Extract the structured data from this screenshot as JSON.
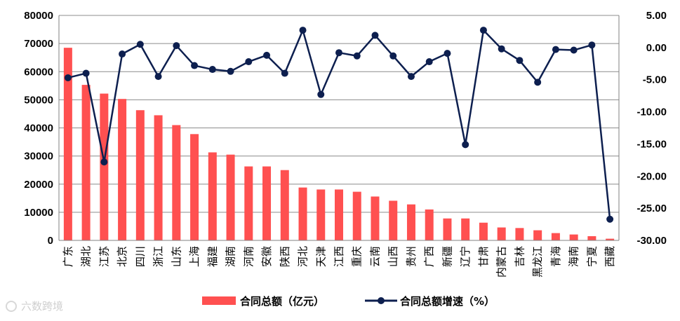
{
  "chart_data": {
    "type": "bar+line",
    "categories": [
      "广东",
      "湖北",
      "江苏",
      "北京",
      "四川",
      "浙江",
      "山东",
      "上海",
      "福建",
      "湖南",
      "河南",
      "安徽",
      "陕西",
      "河北",
      "天津",
      "江西",
      "重庆",
      "云南",
      "山西",
      "贵州",
      "广西",
      "新疆",
      "辽宁",
      "甘肃",
      "内蒙古",
      "吉林",
      "黑龙江",
      "青海",
      "海南",
      "宁夏",
      "西藏"
    ],
    "series": [
      {
        "name": "合同总额（亿元）",
        "type": "bar",
        "axis": "left",
        "color": "#ff5050",
        "values": [
          68500,
          55300,
          52200,
          50300,
          46300,
          44500,
          41000,
          37800,
          31300,
          30500,
          26300,
          26300,
          25000,
          18800,
          18100,
          18100,
          17300,
          15600,
          14100,
          12800,
          11000,
          7800,
          7800,
          6300,
          4600,
          4400,
          3600,
          2600,
          2100,
          1500,
          600
        ]
      },
      {
        "name": "合同总额增速（%）",
        "type": "line",
        "axis": "right",
        "color": "#0d1f4f",
        "values": [
          -4.7,
          -4.0,
          -17.8,
          -1.0,
          0.5,
          -4.5,
          0.3,
          -2.8,
          -3.4,
          -3.7,
          -2.2,
          -1.2,
          -4.0,
          2.7,
          -7.3,
          -0.8,
          -1.3,
          1.9,
          -1.3,
          -4.5,
          -2.2,
          -0.9,
          -15.1,
          2.7,
          -0.2,
          -2.0,
          -5.4,
          -0.3,
          -0.4,
          0.4,
          -26.7
        ]
      }
    ],
    "y_left": {
      "min": 0,
      "max": 80000,
      "step": 10000,
      "ticks": [
        "0",
        "10000",
        "20000",
        "30000",
        "40000",
        "50000",
        "60000",
        "70000",
        "80000"
      ]
    },
    "y_right": {
      "min": -30,
      "max": 5,
      "step": 5,
      "ticks": [
        "-30.00",
        "-25.00",
        "-20.00",
        "-15.00",
        "-10.00",
        "-5.00",
        "0.00",
        "5.00"
      ]
    },
    "grid": true,
    "legend_position": "bottom"
  },
  "watermark": "六数跨境"
}
